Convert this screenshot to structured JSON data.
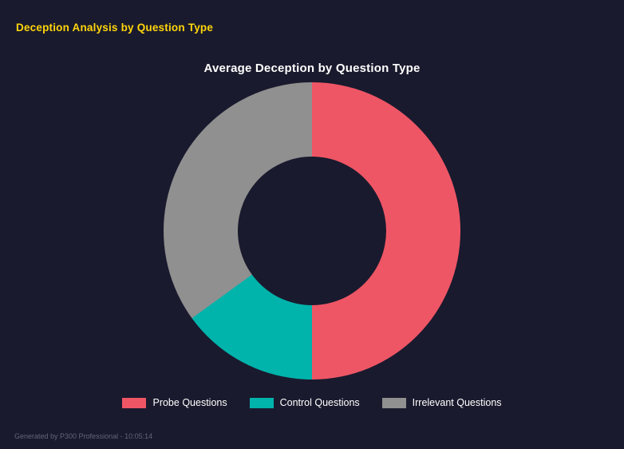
{
  "page": {
    "header": "Deception Analysis by Question Type",
    "footer": "Generated by P300 Professional - 10:05:14"
  },
  "chart_data": {
    "type": "pie",
    "subtype": "donut",
    "title": "Average Deception by Question Type",
    "labels": [
      "Probe Questions",
      "Control Questions",
      "Irrelevant Questions"
    ],
    "values": [
      50,
      15,
      35
    ],
    "unit": "percent",
    "colors": [
      "#ef5665",
      "#00b3ab",
      "#909090"
    ],
    "hole_ratio": 0.5,
    "start_angle_deg": 0,
    "direction": "clockwise",
    "legend_position": "bottom",
    "background": "#1a1a2e"
  },
  "theme": {
    "background": "#1a1a2e",
    "header_color": "#ffd60a",
    "title_color": "#ffffff",
    "legend_text_color": "#ffffff",
    "footer_color": "#63637a"
  }
}
